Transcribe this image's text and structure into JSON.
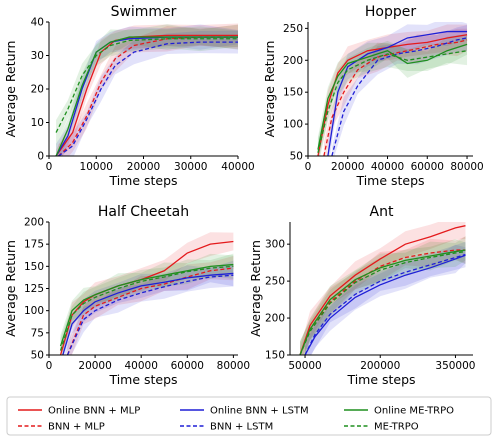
{
  "legend": {
    "entries": [
      {
        "label": "Online BNN + MLP",
        "color": "#e41a1c",
        "dash": false
      },
      {
        "label": "Online BNN + LSTM",
        "color": "#1f1fd6",
        "dash": false
      },
      {
        "label": "Online ME-TRPO",
        "color": "#1f8f1f",
        "dash": false
      },
      {
        "label": "BNN + MLP",
        "color": "#e41a1c",
        "dash": true
      },
      {
        "label": "BNN + LSTM",
        "color": "#1f1fd6",
        "dash": true
      },
      {
        "label": "ME-TRPO",
        "color": "#1f8f1f",
        "dash": true
      }
    ]
  },
  "chart_data": [
    {
      "type": "line",
      "title": "Swimmer",
      "xlabel": "Time steps",
      "ylabel": "Average Return",
      "xlim": [
        0,
        40000
      ],
      "ylim": [
        0,
        40
      ],
      "xticks": [
        0,
        10000,
        20000,
        30000,
        40000
      ],
      "yticks": [
        0,
        10,
        20,
        30,
        40
      ],
      "series": [
        {
          "name": "Online BNN + MLP",
          "x": [
            1500,
            5000,
            8000,
            11000,
            14000,
            18000,
            25000,
            32000,
            40000
          ],
          "y": [
            0,
            7,
            20,
            31,
            34.5,
            35.5,
            36,
            36,
            36
          ]
        },
        {
          "name": "BNN + MLP",
          "x": [
            2000,
            5000,
            8000,
            11000,
            14000,
            18000,
            25000,
            32000,
            40000
          ],
          "y": [
            0,
            4,
            12,
            22,
            29,
            33,
            35,
            35.5,
            35.5
          ]
        },
        {
          "name": "Online BNN + LSTM",
          "x": [
            1500,
            4000,
            7000,
            10000,
            13000,
            17000,
            25000,
            32000,
            40000
          ],
          "y": [
            0,
            6,
            20,
            31,
            34,
            35,
            35.5,
            35.5,
            35.5
          ]
        },
        {
          "name": "BNN + LSTM",
          "x": [
            2000,
            5000,
            8000,
            11000,
            14000,
            18000,
            25000,
            32000,
            40000
          ],
          "y": [
            0,
            3,
            11,
            20,
            27,
            31,
            33.5,
            34,
            34
          ]
        },
        {
          "name": "Online ME-TRPO",
          "x": [
            1500,
            4000,
            7000,
            10000,
            13000,
            17000,
            25000,
            32000,
            40000
          ],
          "y": [
            0,
            8,
            21,
            31,
            34,
            35.5,
            35.5,
            35.5,
            35.5
          ]
        },
        {
          "name": "ME-TRPO",
          "x": [
            1500,
            4000,
            7000,
            10000,
            13000,
            17000,
            25000,
            32000,
            40000
          ],
          "y": [
            7,
            14,
            24,
            30,
            33,
            34.5,
            35,
            35,
            35
          ]
        }
      ]
    },
    {
      "type": "line",
      "title": "Hopper",
      "xlabel": "Time steps",
      "ylabel": "Average Return",
      "xlim": [
        0,
        83000
      ],
      "ylim": [
        50,
        260
      ],
      "xticks": [
        0,
        20000,
        40000,
        60000,
        80000
      ],
      "yticks": [
        50,
        100,
        150,
        200,
        250
      ],
      "series": [
        {
          "name": "Online BNN + MLP",
          "x": [
            5000,
            10000,
            15000,
            20000,
            30000,
            40000,
            50000,
            60000,
            70000,
            80000
          ],
          "y": [
            50,
            130,
            180,
            200,
            215,
            220,
            225,
            228,
            235,
            240
          ]
        },
        {
          "name": "BNN + MLP",
          "x": [
            8000,
            12000,
            18000,
            25000,
            35000,
            45000,
            55000,
            65000,
            75000,
            80000
          ],
          "y": [
            50,
            110,
            150,
            185,
            205,
            212,
            218,
            225,
            228,
            232
          ]
        },
        {
          "name": "Online BNN + LSTM",
          "x": [
            10000,
            15000,
            20000,
            30000,
            40000,
            50000,
            60000,
            70000,
            80000
          ],
          "y": [
            50,
            150,
            190,
            210,
            220,
            235,
            240,
            245,
            245
          ]
        },
        {
          "name": "BNN + LSTM",
          "x": [
            12000,
            18000,
            25000,
            35000,
            45000,
            55000,
            65000,
            75000,
            80000
          ],
          "y": [
            50,
            120,
            160,
            200,
            210,
            215,
            222,
            232,
            235
          ]
        },
        {
          "name": "Online ME-TRPO",
          "x": [
            5000,
            10000,
            15000,
            20000,
            30000,
            40000,
            50000,
            60000,
            70000,
            80000
          ],
          "y": [
            60,
            140,
            175,
            195,
            205,
            215,
            195,
            200,
            215,
            225
          ]
        },
        {
          "name": "ME-TRPO",
          "x": [
            5000,
            10000,
            15000,
            20000,
            30000,
            40000,
            50000,
            60000,
            70000,
            80000
          ],
          "y": [
            55,
            120,
            165,
            185,
            200,
            210,
            200,
            205,
            210,
            215
          ]
        }
      ]
    },
    {
      "type": "line",
      "title": "Half Cheetah",
      "xlabel": "Time steps",
      "ylabel": "Average Return",
      "xlim": [
        0,
        82000
      ],
      "ylim": [
        50,
        200
      ],
      "xticks": [
        0,
        20000,
        40000,
        60000,
        80000
      ],
      "yticks": [
        50,
        75,
        100,
        125,
        150,
        175,
        200
      ],
      "series": [
        {
          "name": "Online BNN + MLP",
          "x": [
            5000,
            10000,
            15000,
            20000,
            30000,
            40000,
            50000,
            60000,
            70000,
            80000
          ],
          "y": [
            50,
            95,
            110,
            118,
            128,
            135,
            145,
            165,
            175,
            178
          ]
        },
        {
          "name": "BNN + MLP",
          "x": [
            8000,
            15000,
            20000,
            30000,
            40000,
            50000,
            60000,
            70000,
            80000
          ],
          "y": [
            50,
            95,
            105,
            115,
            125,
            130,
            138,
            145,
            148
          ]
        },
        {
          "name": "Online BNN + LSTM",
          "x": [
            6000,
            10000,
            15000,
            20000,
            30000,
            40000,
            50000,
            60000,
            70000,
            80000
          ],
          "y": [
            50,
            85,
            100,
            110,
            120,
            128,
            132,
            137,
            140,
            142
          ]
        },
        {
          "name": "BNN + LSTM",
          "x": [
            8000,
            15000,
            20000,
            30000,
            40000,
            50000,
            60000,
            70000,
            80000
          ],
          "y": [
            50,
            90,
            100,
            112,
            120,
            127,
            133,
            138,
            140
          ]
        },
        {
          "name": "Online ME-TRPO",
          "x": [
            5000,
            10000,
            15000,
            20000,
            30000,
            40000,
            50000,
            60000,
            70000,
            80000
          ],
          "y": [
            60,
            100,
            112,
            118,
            128,
            135,
            140,
            145,
            150,
            152
          ]
        },
        {
          "name": "ME-TRPO",
          "x": [
            5000,
            10000,
            15000,
            20000,
            30000,
            40000,
            50000,
            60000,
            70000,
            80000
          ],
          "y": [
            55,
            95,
            108,
            115,
            125,
            133,
            138,
            144,
            148,
            150
          ]
        }
      ]
    },
    {
      "type": "line",
      "title": "Ant",
      "xlabel": "Time steps",
      "ylabel": "Average Return",
      "xlim": [
        20000,
        385000
      ],
      "ylim": [
        150,
        330
      ],
      "xticks": [
        50000,
        200000,
        350000
      ],
      "yticks": [
        150,
        200,
        250,
        300
      ],
      "series": [
        {
          "name": "Online BNN + MLP",
          "x": [
            40000,
            60000,
            100000,
            150000,
            200000,
            250000,
            300000,
            350000,
            370000
          ],
          "y": [
            150,
            190,
            230,
            258,
            280,
            300,
            310,
            322,
            325
          ]
        },
        {
          "name": "BNN + MLP",
          "x": [
            40000,
            60000,
            100000,
            150000,
            200000,
            250000,
            300000,
            350000,
            370000
          ],
          "y": [
            150,
            185,
            222,
            250,
            270,
            282,
            288,
            292,
            292
          ]
        },
        {
          "name": "Online BNN + LSTM",
          "x": [
            50000,
            70000,
            100000,
            150000,
            200000,
            250000,
            300000,
            350000,
            370000
          ],
          "y": [
            150,
            175,
            200,
            228,
            245,
            258,
            268,
            280,
            285
          ]
        },
        {
          "name": "BNN + LSTM",
          "x": [
            50000,
            70000,
            100000,
            150000,
            200000,
            250000,
            300000,
            350000,
            370000
          ],
          "y": [
            150,
            178,
            205,
            232,
            250,
            262,
            272,
            282,
            286
          ]
        },
        {
          "name": "Online ME-TRPO",
          "x": [
            40000,
            60000,
            100000,
            150000,
            200000,
            250000,
            300000,
            350000,
            370000
          ],
          "y": [
            150,
            185,
            225,
            252,
            268,
            278,
            284,
            290,
            292
          ]
        },
        {
          "name": "ME-TRPO",
          "x": [
            40000,
            60000,
            100000,
            150000,
            200000,
            250000,
            300000,
            350000,
            370000
          ],
          "y": [
            150,
            182,
            220,
            248,
            265,
            275,
            282,
            288,
            290
          ]
        }
      ]
    }
  ]
}
